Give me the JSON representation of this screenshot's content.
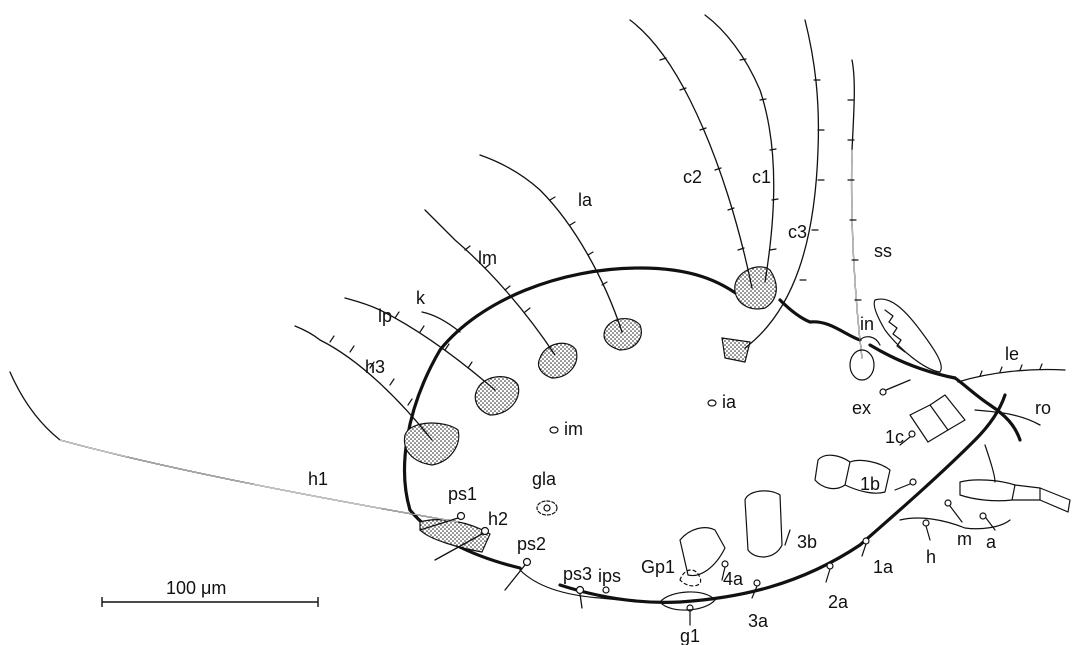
{
  "labels": {
    "h1": "h1",
    "h2": "h2",
    "h3": "h3",
    "lp": "lp",
    "k": "k",
    "lm": "lm",
    "la": "la",
    "c1": "c1",
    "c2": "c2",
    "c3": "c3",
    "ss": "ss",
    "in": "in",
    "le": "le",
    "ro": "ro",
    "ex": "ex",
    "ia": "ia",
    "im": "im",
    "gla": "gla",
    "ps1": "ps1",
    "ps2": "ps2",
    "ps3": "ps3",
    "ips": "ips",
    "gp1": "Gp1",
    "g1": "g1",
    "s1a": "1a",
    "s1b": "1b",
    "s1c": "1c",
    "s2a": "2a",
    "s3a": "3a",
    "s3b": "3b",
    "s4a": "4a",
    "h": "h",
    "m": "m",
    "a": "a"
  },
  "scale_bar": {
    "label": "100 μm",
    "value": 100,
    "unit": "μm"
  },
  "colors": {
    "ink": "#111111",
    "background": "#ffffff"
  }
}
